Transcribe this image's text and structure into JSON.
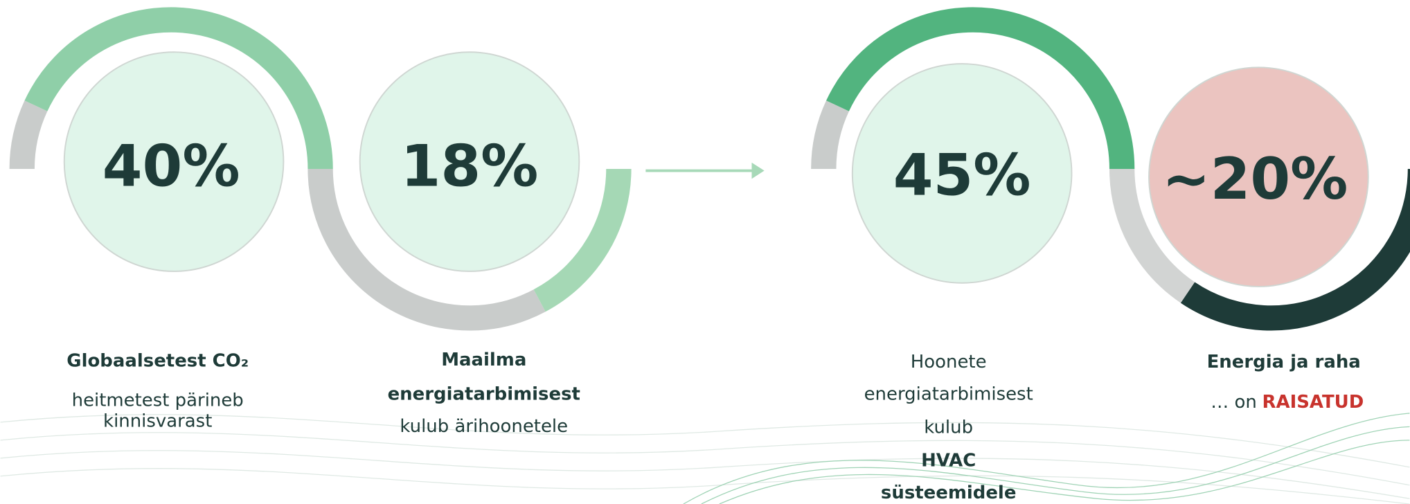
{
  "stats": [
    {
      "value": "40%",
      "lines": [
        "Globaalsetest CO₂",
        "heitmetest pärineb",
        "kinnisvarast"
      ]
    },
    {
      "value": "18%",
      "lines": [
        "Maailma",
        "energiatarbimisest",
        "kulub ärihoonetele"
      ]
    },
    {
      "value": "45%",
      "lines": [
        "Hoonete",
        "energiatarbimisest",
        "kulub",
        "HVAC",
        "süsteemidele"
      ]
    },
    {
      "value": "~20%",
      "lines": [
        "Energia ja raha",
        "… on",
        "RAISATUD"
      ]
    }
  ]
}
